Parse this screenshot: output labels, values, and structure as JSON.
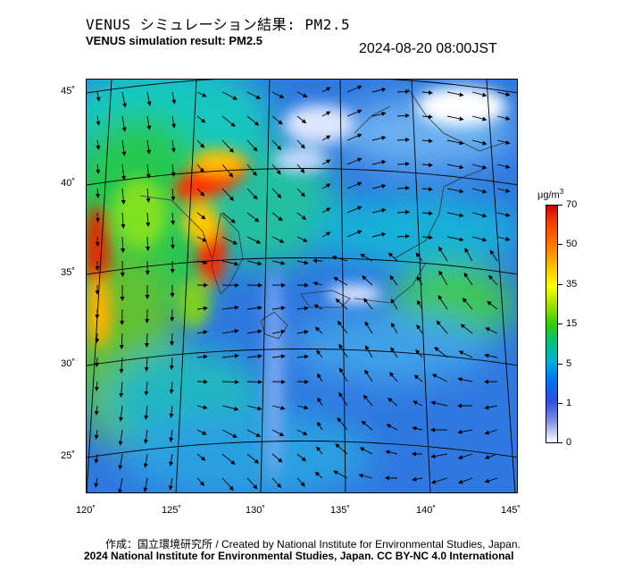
{
  "title_jp": "VENUS シミュレーション結果: PM2.5",
  "title_en": "VENUS simulation result: PM2.5",
  "timestamp": "2024-08-20 08:00JST",
  "lat_labels": [
    "45˚",
    "40˚",
    "35˚",
    "30˚",
    "25˚"
  ],
  "lon_labels": [
    "120˚",
    "125˚",
    "130˚",
    "135˚",
    "140˚",
    "145˚"
  ],
  "colorbar": {
    "unit": "μg/m",
    "unit_sup": "3",
    "labels": [
      "70",
      "50",
      "35",
      "15",
      "5",
      "1",
      "0"
    ],
    "colors": [
      "#d00000",
      "#ff8000",
      "#ffff00",
      "#30d000",
      "#00b0d8",
      "#3050e0",
      "#ffffff"
    ]
  },
  "credit_jp": "作成：国立環境研究所 / Created by National Institute for Environmental Studies, Japan.",
  "credit_cc": "2024 National Institute for Environmental Studies, Japan. CC BY-NC 4.0 International"
}
